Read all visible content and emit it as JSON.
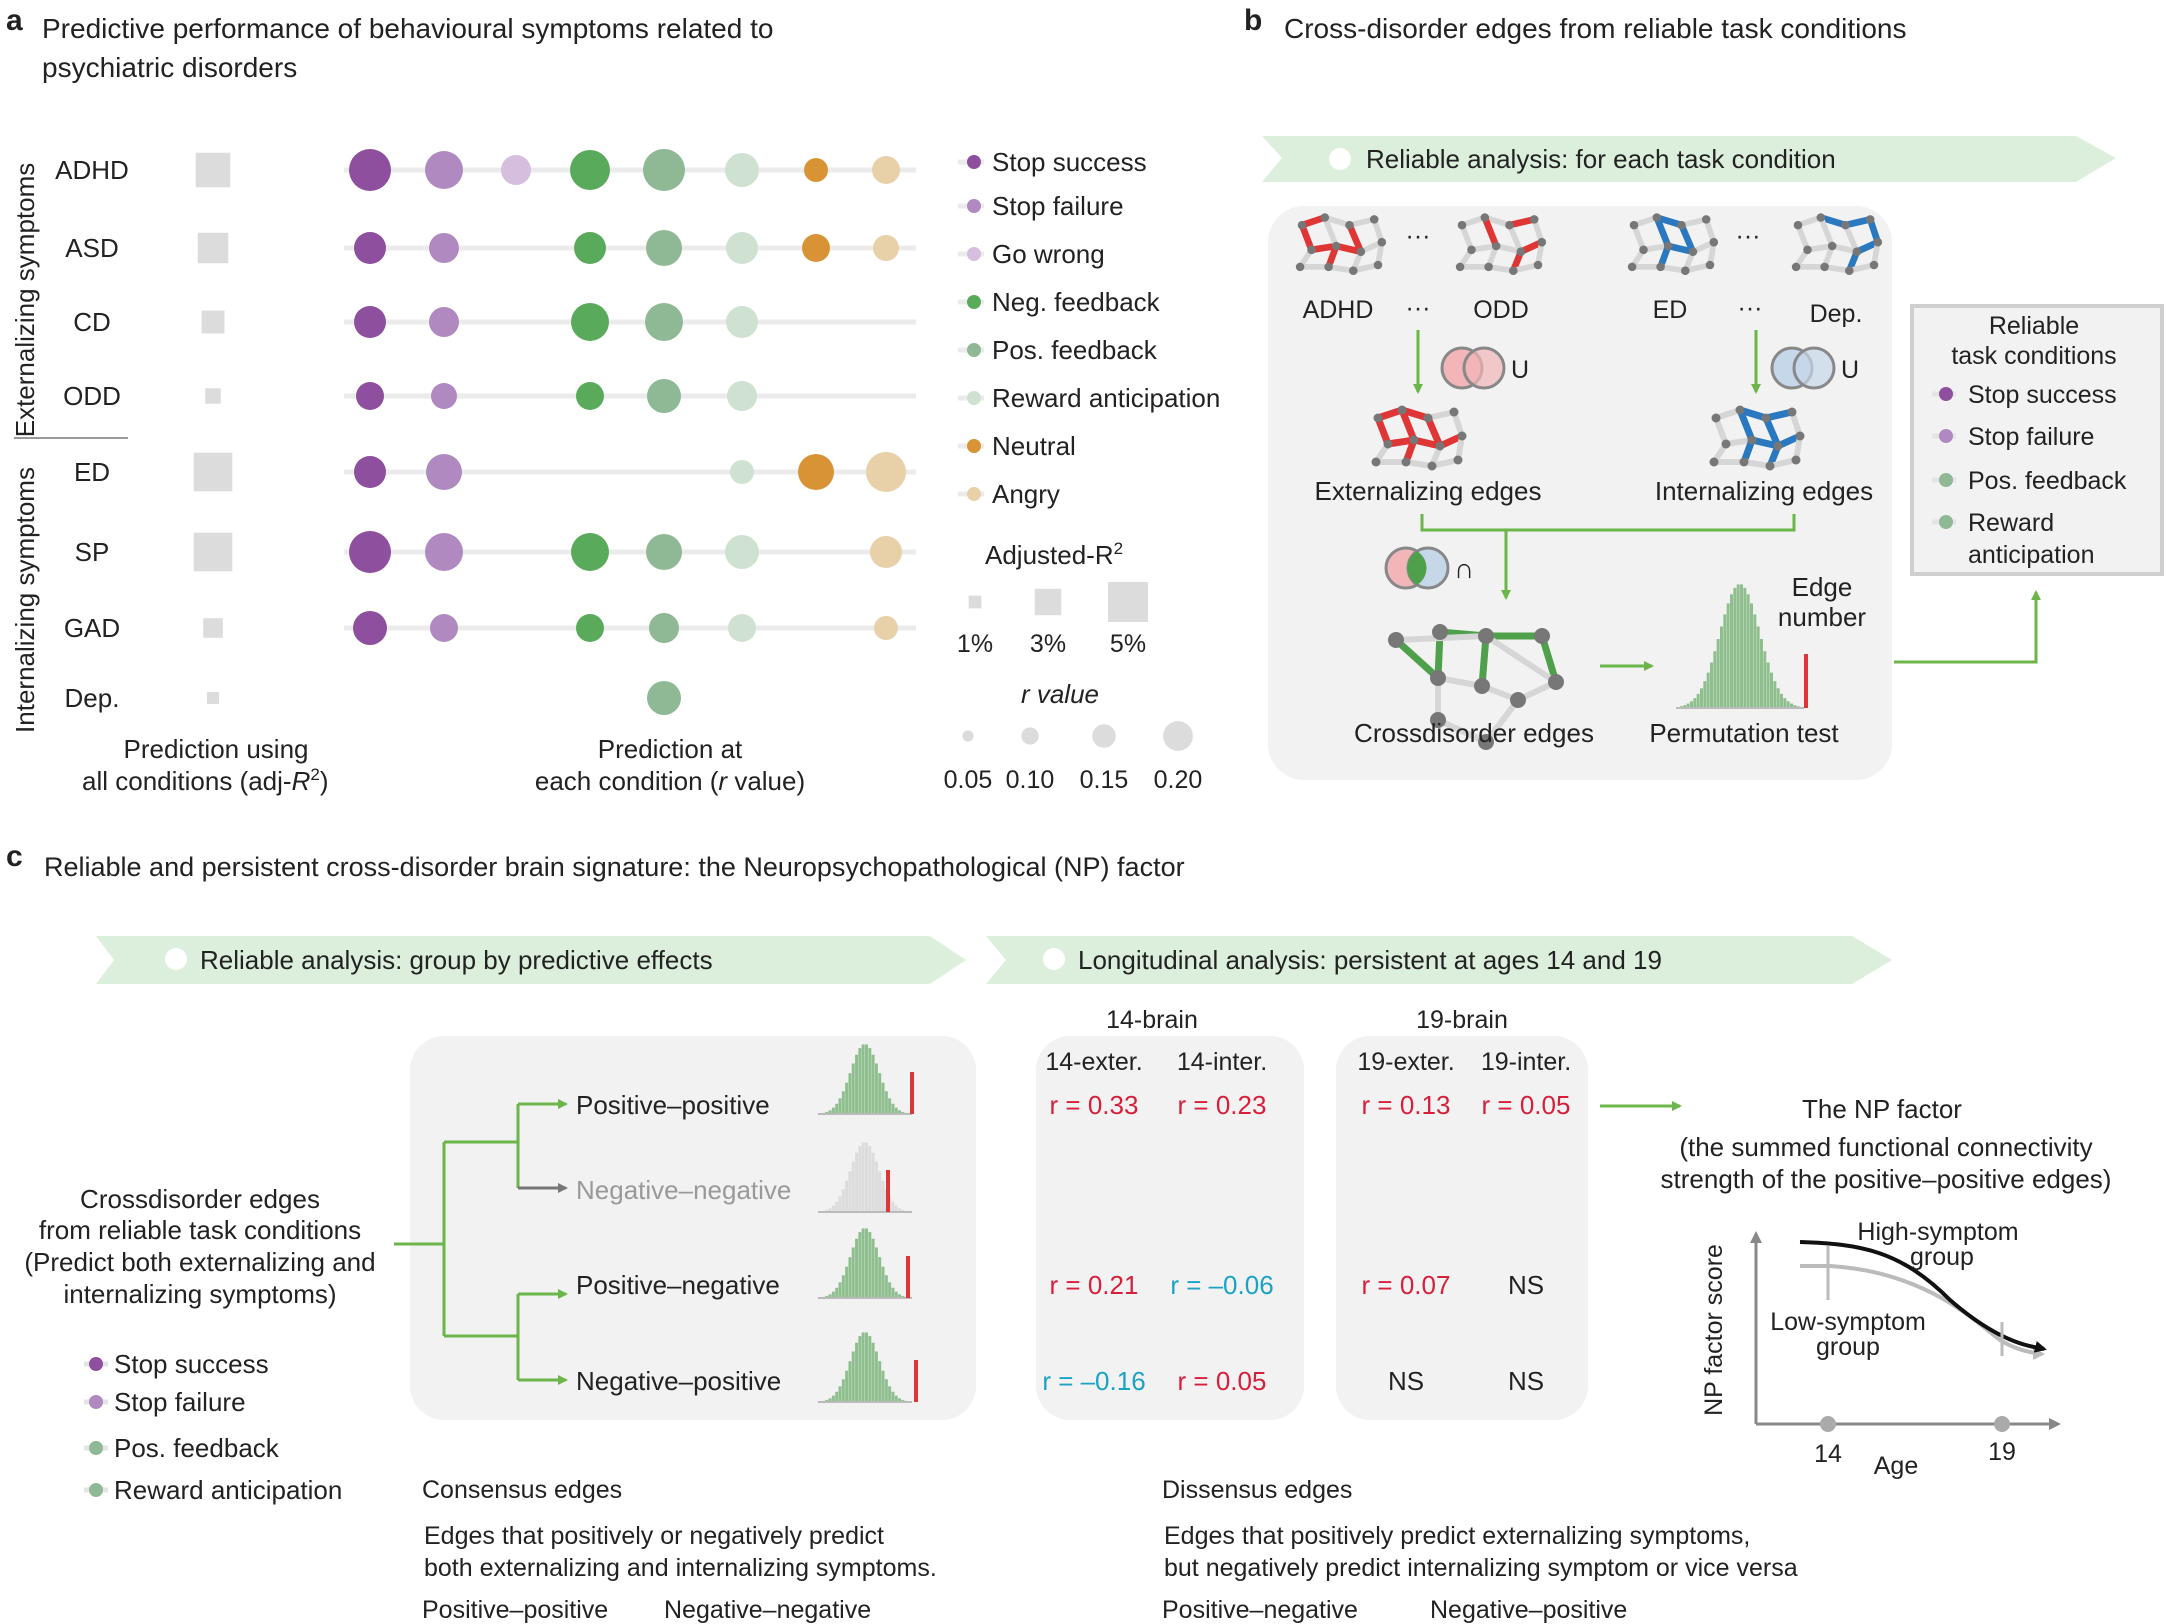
{
  "colors": {
    "stop_success": "#8e4f9e",
    "stop_failure": "#b089c0",
    "go_wrong": "#d6bedf",
    "neg_feedback": "#5aaa5c",
    "pos_feedback": "#8fb895",
    "reward_anticipation": "#cfe1d0",
    "neutral": "#d89434",
    "angry": "#e8d1a8",
    "red": "#e03535",
    "blue": "#2a79c0",
    "green_line": "#6bb54a",
    "band": "#dcefdc",
    "panel": "#f2f2f2",
    "gray_square": "#dcdcdc",
    "cyan_text": "#1aa3c4",
    "red_text": "#d61f3a"
  },
  "panel_a": {
    "label": "a",
    "title_line1": "Predictive performance of behavioural symptoms related to",
    "title_line2": "psychiatric disorders",
    "group_externalizing": "Externalizing symptoms",
    "group_internalizing": "Internalizing symptoms",
    "disorders": [
      "ADHD",
      "ASD",
      "CD",
      "ODD",
      "ED",
      "SP",
      "GAD",
      "Dep."
    ],
    "adj_r2": [
      4.2,
      3.6,
      2.5,
      1.4,
      4.8,
      4.8,
      2.0,
      0.9
    ],
    "r_values": [
      [
        0.17,
        0.15,
        0.11,
        0.16,
        0.17,
        0.13,
        0.08,
        0.1
      ],
      [
        0.12,
        0.11,
        null,
        0.12,
        0.14,
        0.12,
        0.1,
        0.09
      ],
      [
        0.12,
        0.11,
        null,
        0.15,
        0.15,
        0.12,
        null,
        null
      ],
      [
        0.1,
        0.09,
        null,
        0.1,
        0.13,
        0.11,
        null,
        null
      ],
      [
        0.12,
        0.14,
        null,
        null,
        null,
        0.08,
        0.14,
        0.16
      ],
      [
        0.17,
        0.15,
        null,
        0.15,
        0.14,
        0.13,
        null,
        0.12
      ],
      [
        0.13,
        0.1,
        null,
        0.1,
        0.11,
        0.1,
        null,
        0.08
      ],
      [
        null,
        null,
        null,
        null,
        0.13,
        null,
        null,
        null
      ]
    ],
    "legend_items": [
      "Stop success",
      "Stop failure",
      "Go wrong",
      "Neg. feedback",
      "Pos. feedback",
      "Reward anticipation",
      "Neutral",
      "Angry"
    ],
    "adj_r2_title": "Adjusted-R",
    "adj_r2_sup": "2",
    "adj_r2_legend": [
      "1%",
      "3%",
      "5%"
    ],
    "r_title": "r value",
    "r_legend": [
      "0.05",
      "0.10",
      "0.15",
      "0.20"
    ],
    "xlabel_left_1": "Prediction using",
    "xlabel_left_2": "all conditions (adj-",
    "xlabel_right_1": "Prediction at",
    "xlabel_right_2a": "each condition (",
    "xlabel_right_2b": "r",
    "xlabel_right_2c": " value)"
  },
  "panel_b": {
    "label": "b",
    "title": "Cross-disorder edges from reliable task conditions",
    "band": "Reliable analysis: for each task condition",
    "adhd": "ADHD",
    "odd": "ODD",
    "ed": "ED",
    "dep": "Dep.",
    "ellipsis": "···",
    "union": "U",
    "intersect": "∩",
    "ext_edges": "Externalizing edges",
    "int_edges": "Internalizing edges",
    "cross_edges": "Crossdisorder edges",
    "perm_test": "Permutation test",
    "edge_number_1": "Edge",
    "edge_number_2": "number",
    "box_title_1": "Reliable",
    "box_title_2": "task conditions",
    "box_items": [
      "Stop success",
      "Stop failure",
      "Pos. feedback",
      "Reward",
      "anticipation"
    ]
  },
  "panel_c": {
    "label": "c",
    "title": "Reliable and persistent cross-disorder brain signature: the Neuropsychopathological (NP) factor",
    "band1": "Reliable analysis: group by predictive effects",
    "band2": "Longitudinal analysis: persistent at ages 14 and 19",
    "root_lines": [
      "Crossdisorder edges",
      "from reliable task conditions",
      "(Predict both externalizing and",
      "internalizing  symptoms)"
    ],
    "legend": [
      "Stop success",
      "Stop failure",
      "Pos. feedback",
      "Reward anticipation"
    ],
    "branches": [
      "Positive–positive",
      "Negative–negative",
      "Positive–negative",
      "Negative–positive"
    ],
    "brain14": "14-brain",
    "brain19": "19-brain",
    "col_14ext": "14-exter.",
    "col_14int": "14-inter.",
    "col_19ext": "19-exter.",
    "col_19int": "19-inter.",
    "rows": [
      [
        "r = 0.33",
        "r = 0.23",
        "r = 0.13",
        "r = 0.05"
      ],
      [
        "",
        "",
        "",
        ""
      ],
      [
        "r = 0.21",
        "r = –0.06",
        "r = 0.07",
        "NS"
      ],
      [
        "r = –0.16",
        "r = 0.05",
        "NS",
        "NS"
      ]
    ],
    "np_title": "The NP factor",
    "np_desc": [
      "(the summed functional connectivity",
      "strength of the positive–positive edges)"
    ],
    "high_group": [
      "High-symptom",
      "group"
    ],
    "low_group": [
      "Low-symptom",
      "group"
    ],
    "np_ylabel": "NP factor score",
    "np_xlabel": "Age",
    "age14": "14",
    "age19": "19",
    "consensus_title": "Consensus edges",
    "consensus_desc": [
      "Edges that positively or negatively predict",
      "both externalizing and internalizing symptoms."
    ],
    "consensus_types": [
      "Positive–positive",
      "Negative–negative"
    ],
    "dissensus_title": "Dissensus edges",
    "dissensus_desc": [
      "Edges that positively predict externalizing symptoms,",
      "but negatively predict internalizing symptom or vice versa"
    ],
    "dissensus_types": [
      "Positive–negative",
      "Negative–positive"
    ]
  }
}
